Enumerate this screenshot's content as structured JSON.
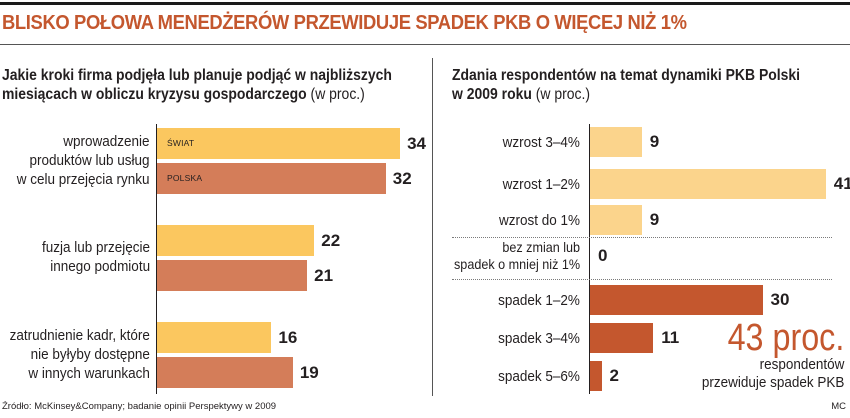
{
  "headline": "BLISKO POŁOWA MENEDŻERÓW PRZEWIDUJE SPADEK PKB O WIĘCEJ NIŻ 1%",
  "colors": {
    "swiat": "#fbc75f",
    "polska": "#d47d59",
    "light": "#fbd48c",
    "dark": "#c4572e",
    "accent": "#c4572e"
  },
  "chart_data": [
    {
      "type": "bar",
      "orientation": "horizontal",
      "title_lines": [
        "Jakie kroki firma podjęła lub planuje podjąć w najbliższych",
        "miesiącach w obliczu kryzysu gospodarczego"
      ],
      "title_unit": "(w proc.)",
      "categories": [
        [
          "wprowadzenie",
          "produktów lub usług",
          "w celu przejęcia rynku"
        ],
        [
          "fuzja lub przejęcie",
          "innego podmiotu"
        ],
        [
          "zatrudnienie kadr, które",
          "nie byłyby  dostępne",
          "w innych warunkach"
        ]
      ],
      "series": [
        {
          "name": "ŚWIAT",
          "values": [
            34,
            22,
            16
          ]
        },
        {
          "name": "POLSKA",
          "values": [
            32,
            21,
            19
          ]
        }
      ]
    },
    {
      "type": "bar",
      "orientation": "horizontal",
      "title_lines": [
        "Zdania respondentów na temat dynamiki PKB Polski",
        "w 2009 roku"
      ],
      "title_unit": "(w proc.)",
      "categories": [
        [
          "wzrost 3–4%"
        ],
        [
          "wzrost 1–2%"
        ],
        [
          "wzrost do 1%"
        ],
        [
          "bez zmian lub",
          "spadek o mniej niż 1%"
        ],
        [
          "spadek 1–2%"
        ],
        [
          "spadek 3–4%"
        ],
        [
          "spadek 5–6%"
        ]
      ],
      "values": [
        9,
        41,
        9,
        0,
        30,
        11,
        2
      ],
      "annotation": {
        "big": "43 proc.",
        "lines": [
          "respondentów",
          "przewiduje spadek PKB"
        ]
      }
    }
  ],
  "source": "Źródło: McKinsey&Company; badanie opinii Perspektywy w 2009",
  "credit": "MC"
}
